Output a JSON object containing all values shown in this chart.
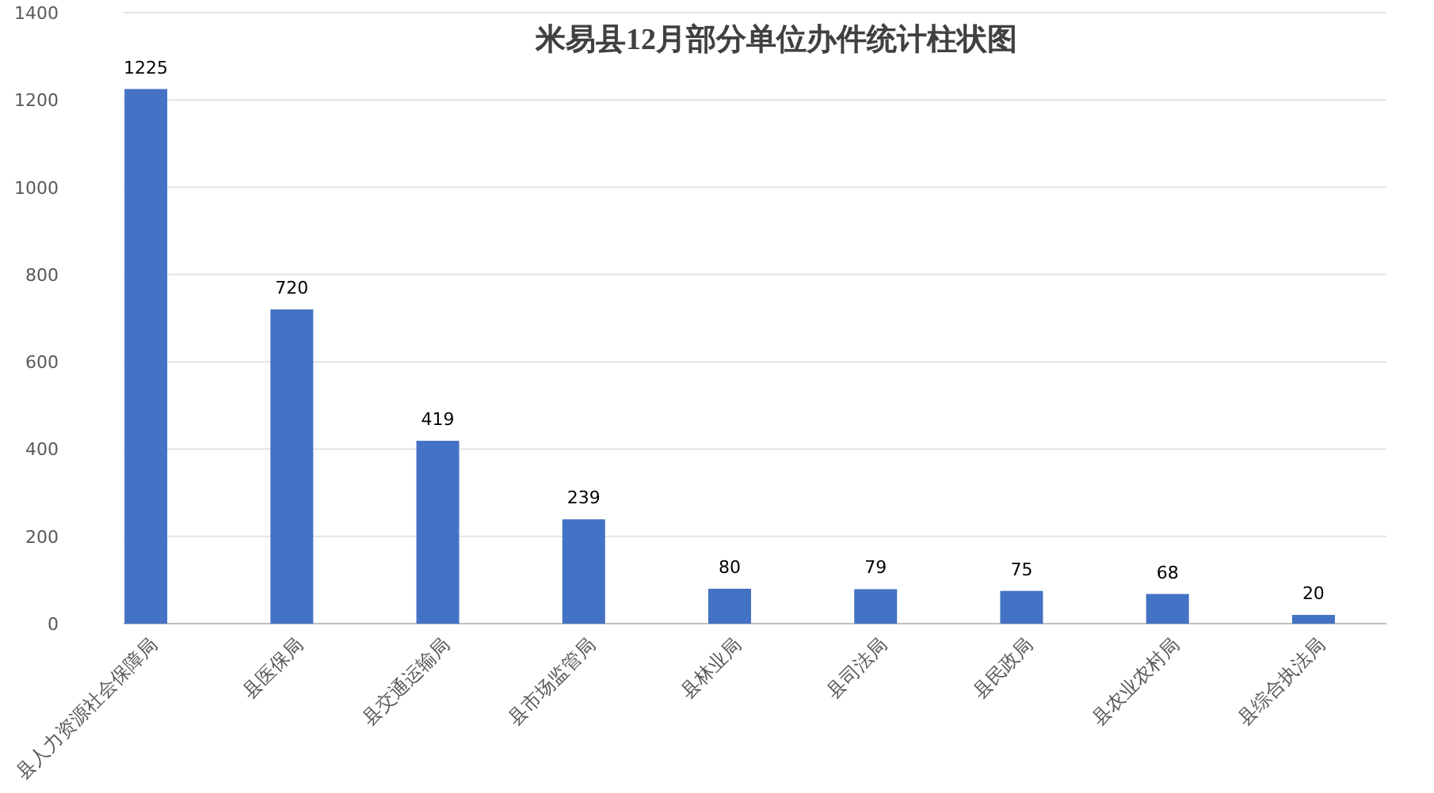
{
  "chart_data": {
    "type": "bar",
    "title": "米易县12月部分单位办件统计柱状图",
    "categories": [
      "县人力资源社会保障局",
      "县医保局",
      "县交通运输局",
      "县市场监管局",
      "县林业局",
      "县司法局",
      "县民政局",
      "县农业农村局",
      "县综合执法局"
    ],
    "values": [
      1225,
      720,
      419,
      239,
      80,
      79,
      75,
      68,
      20
    ],
    "color": "#4472c4",
    "ylim": [
      0,
      1400
    ],
    "yticks": [
      0,
      200,
      400,
      600,
      800,
      1000,
      1200,
      1400
    ],
    "grid": "y",
    "data_labels": true
  }
}
